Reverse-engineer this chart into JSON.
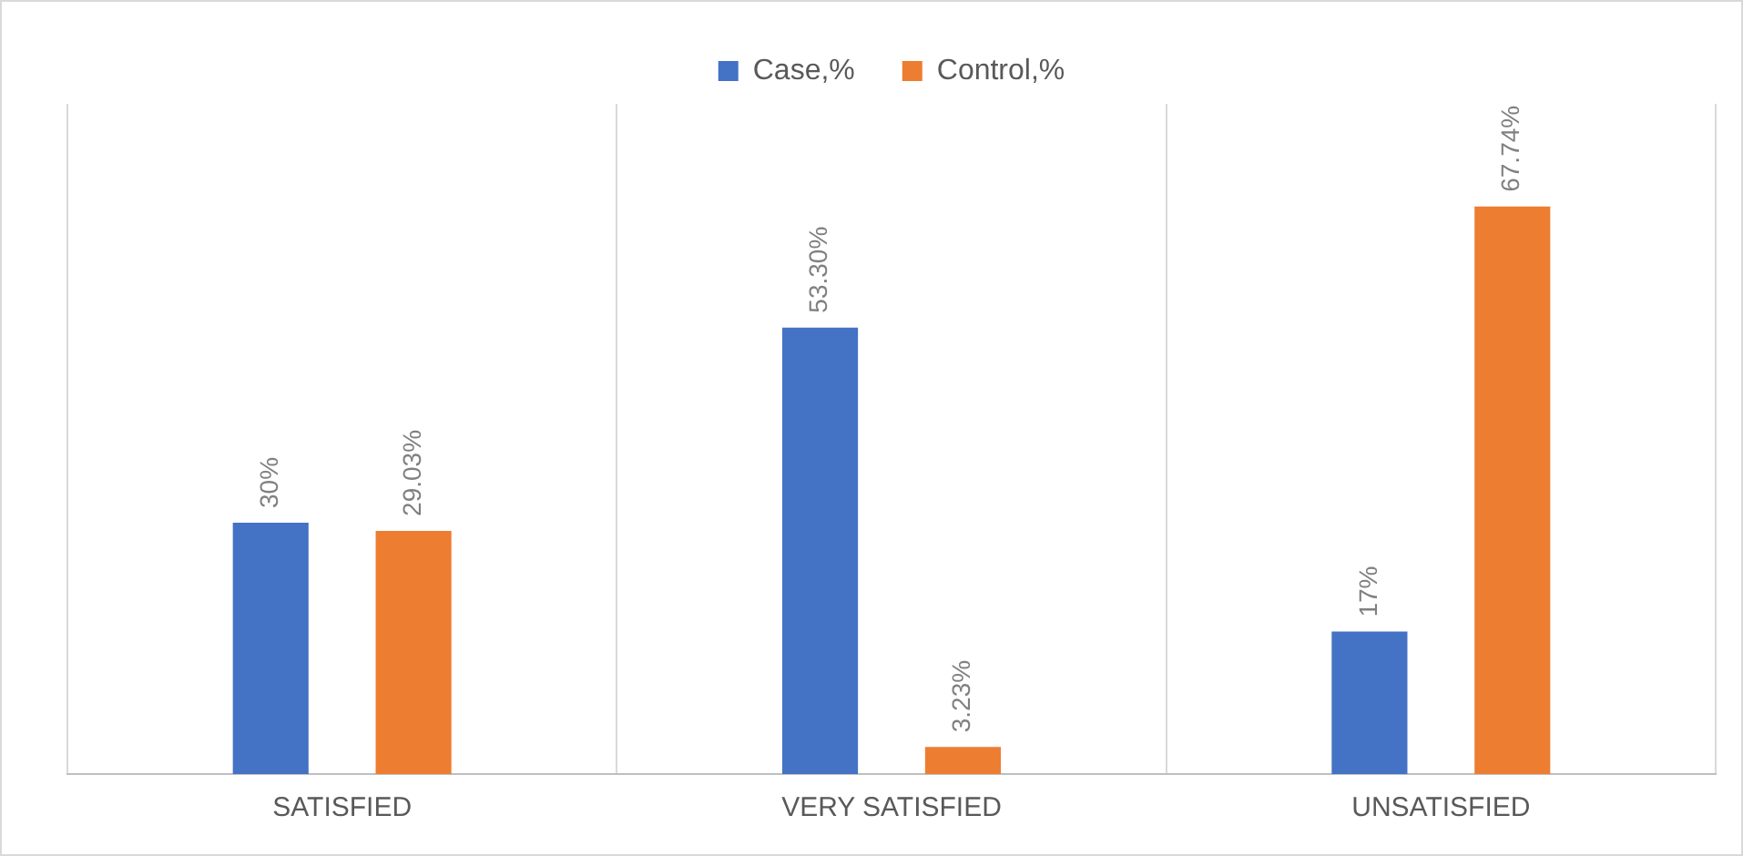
{
  "chart_data": {
    "type": "bar",
    "categories": [
      "SATISFIED",
      "VERY SATISFIED",
      "UNSATISFIED"
    ],
    "series": [
      {
        "name": "Case,%",
        "color": "#4472c4",
        "values": [
          30,
          53.3,
          17
        ],
        "value_labels": [
          "30%",
          "53.30%",
          "17%"
        ]
      },
      {
        "name": "Control,%",
        "color": "#ed7d31",
        "values": [
          29.03,
          3.23,
          67.74
        ],
        "value_labels": [
          "29.03%",
          "3.23%",
          "67.74%"
        ]
      }
    ],
    "ylim": [
      0,
      80
    ],
    "grid": "x",
    "legend": "top",
    "tick_labels": "x"
  }
}
